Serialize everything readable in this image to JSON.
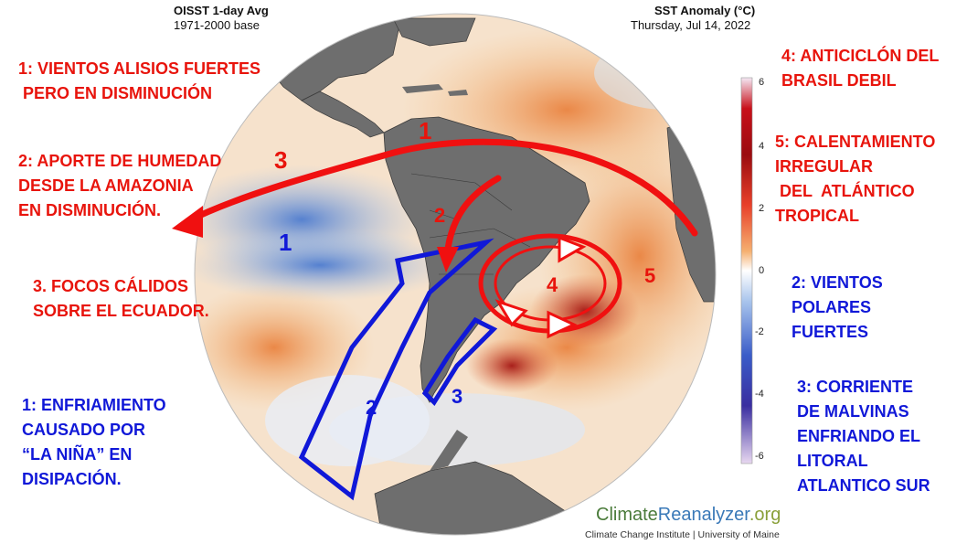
{
  "header": {
    "left_title": "OISST 1-day Avg",
    "left_sub": "1971-2000 base",
    "right_title": "SST Anomaly (°C)",
    "right_sub": "Thursday, Jul 14, 2022"
  },
  "colorbar": {
    "ticks": [
      "6",
      "4",
      "2",
      "0",
      "-2",
      "-4",
      "-6"
    ],
    "range": [
      -6,
      6
    ],
    "colors": [
      "#d9b7e8",
      "#2f2a9e",
      "#4a76c8",
      "#ffffff",
      "#f2a050",
      "#c81810",
      "#6e0808"
    ]
  },
  "annotations_left": [
    "1: VIENTOS ALISIOS FUERTES\n PERO EN DISMINUCIÓN",
    "2: APORTE DE HUMEDAD\nDESDE LA AMAZONIA\nEN DISMINUCIÓN.",
    "3. FOCOS CÁLIDOS\nSOBRE EL ECUADOR.",
    "1: ENFRIAMIENTO\nCAUSADO POR\n“LA NIÑA” EN\nDISIPACIÓN."
  ],
  "annotations_right": [
    "4: ANTICICLÓN DEL\nBRASIL DEBIL",
    "5: CALENTAMIENTO\nIRREGULAR\n DEL  ATLÁNTICO\nTROPICAL",
    "2: VIENTOS\nPOLARES\nFUERTES",
    "3: CORRIENTE\nDE MALVINAS\nENFRIANDO EL\nLITORAL\nATLANTICO SUR"
  ],
  "map_labels": {
    "red": [
      "1",
      "2",
      "3",
      "4",
      "5"
    ],
    "blue": [
      "1",
      "2",
      "3"
    ]
  },
  "brand": {
    "climate": "Climate",
    "reanalyzer": "Reanalyzer",
    "org": ".org",
    "credit": "Climate Change Institute | University of Maine"
  }
}
